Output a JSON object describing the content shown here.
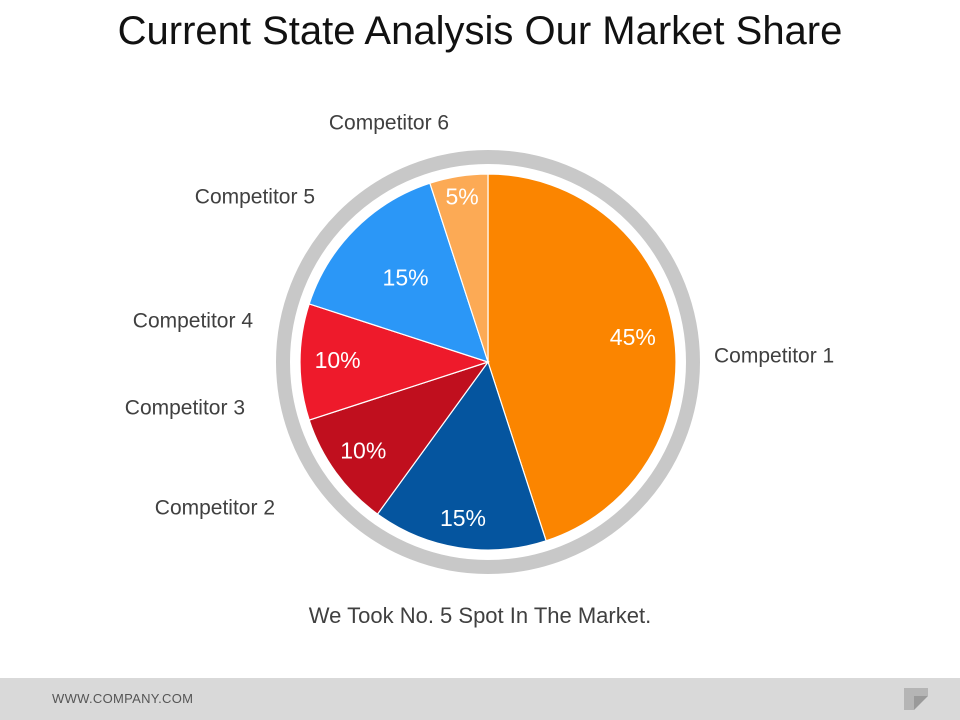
{
  "slide": {
    "title": "Current State Analysis Our Market Share",
    "caption": "We Took No. 5 Spot In The Market.",
    "footer_url": "WWW.COMPANY.COM"
  },
  "colors": {
    "ring": "#c8c8c8",
    "label_text": "#404040",
    "slice_text": "#ffffff"
  },
  "chart_data": {
    "type": "pie",
    "title": "",
    "start": "12 o'clock, clockwise",
    "slices": [
      {
        "label": "Competitor 1",
        "value": 45,
        "value_label": "45%",
        "color": "#fb8500"
      },
      {
        "label": "Competitor 2",
        "value": 15,
        "value_label": "15%",
        "color": "#05559f"
      },
      {
        "label": "Competitor 3",
        "value": 10,
        "value_label": "10%",
        "color": "#c00f1e"
      },
      {
        "label": "Competitor 4",
        "value": 10,
        "value_label": "10%",
        "color": "#ee1a2b"
      },
      {
        "label": "Competitor 5",
        "value": 15,
        "value_label": "15%",
        "color": "#2b97f7"
      },
      {
        "label": "Competitor 6",
        "value": 5,
        "value_label": "5%",
        "color": "#fcaa55"
      }
    ]
  }
}
